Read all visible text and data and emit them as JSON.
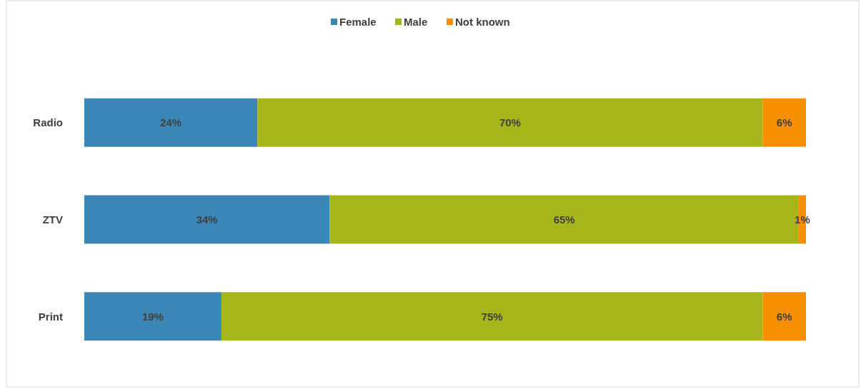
{
  "chart_data": {
    "type": "bar",
    "orientation": "horizontal",
    "stacked": true,
    "categories": [
      "Radio",
      "ZTV",
      "Print"
    ],
    "series": [
      {
        "name": "Female",
        "color": "#3a87b7",
        "values": [
          24,
          34,
          19
        ],
        "value_labels": [
          "24%",
          "34%",
          "19%"
        ]
      },
      {
        "name": "Male",
        "color": "#a5b51a",
        "values": [
          70,
          65,
          75
        ],
        "value_labels": [
          "70%",
          "65%",
          "75%"
        ]
      },
      {
        "name": "Not known",
        "color": "#f79000",
        "values": [
          6,
          1,
          6
        ],
        "value_labels": [
          "6%",
          "1%",
          "6%"
        ]
      }
    ],
    "legend": "top"
  }
}
